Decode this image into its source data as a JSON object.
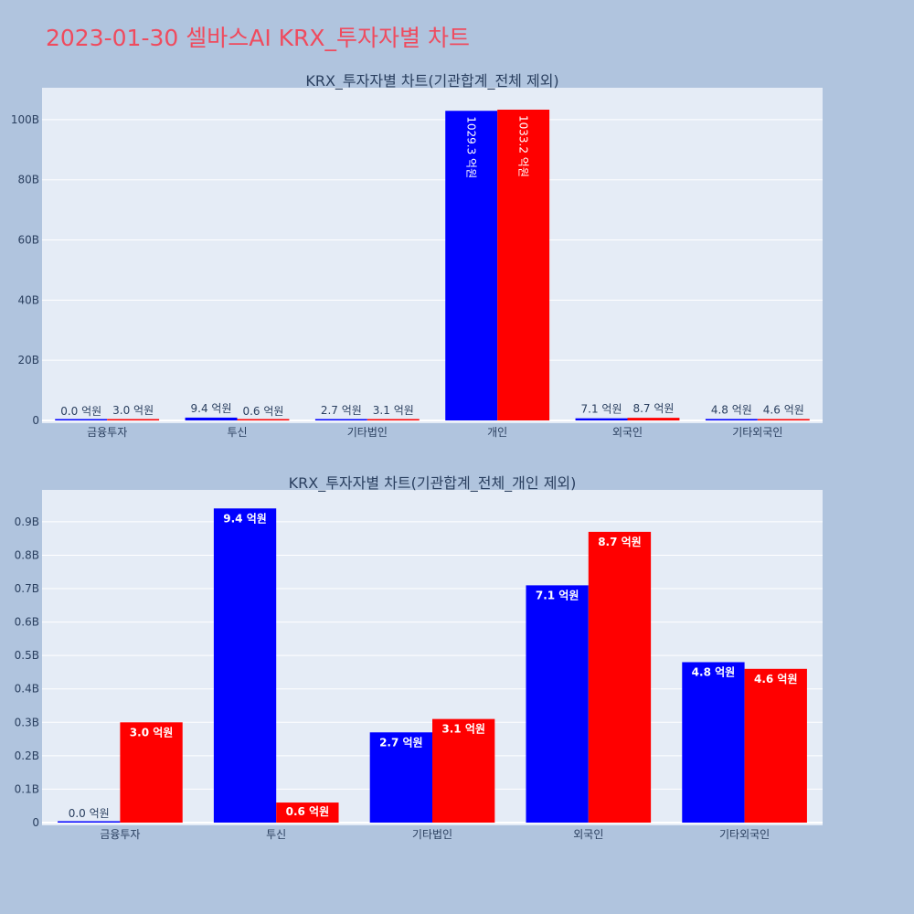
{
  "page": {
    "title": "2023-01-30 셀바스AI KRX_투자자별 차트"
  },
  "colors": {
    "series_a": "#0000ff",
    "series_b": "#ff0000",
    "plot_bg": "#e5ecf6",
    "page_bg": "#b0c4de",
    "title": "#ef4b5e"
  },
  "chart_data": [
    {
      "type": "bar",
      "title": "KRX_투자자별 차트(기관합계_전체 제외)",
      "categories": [
        "금융투자",
        "투신",
        "기타법인",
        "개인",
        "외국인",
        "기타외국인"
      ],
      "series": [
        {
          "values": [
            0.0,
            0.94,
            0.27,
            102.93,
            0.71,
            0.48
          ],
          "labels": [
            "0.0 억원",
            "9.4 억원",
            "2.7 억원",
            "1029.3 억원",
            "7.1 억원",
            "4.8 억원"
          ]
        },
        {
          "values": [
            0.3,
            0.06,
            0.31,
            103.32,
            0.87,
            0.46
          ],
          "labels": [
            "3.0 억원",
            "0.6 억원",
            "3.1 억원",
            "1033.2 억원",
            "8.7 억원",
            "4.6 억원"
          ]
        }
      ],
      "ylim": [
        0,
        110
      ],
      "ytick_values": [
        0,
        20,
        40,
        60,
        80,
        100
      ],
      "ytick_labels": [
        "0",
        "20B",
        "40B",
        "60B",
        "80B",
        "100B"
      ],
      "grid": true,
      "legend": "none"
    },
    {
      "type": "bar",
      "title": "KRX_투자자별 차트(기관합계_전체_개인 제외)",
      "categories": [
        "금융투자",
        "투신",
        "기타법인",
        "외국인",
        "기타외국인"
      ],
      "series": [
        {
          "values": [
            0.0,
            0.94,
            0.27,
            0.71,
            0.48
          ],
          "labels": [
            "0.0 억원",
            "9.4 억원",
            "2.7 억원",
            "7.1 억원",
            "4.8 억원"
          ]
        },
        {
          "values": [
            0.3,
            0.06,
            0.31,
            0.87,
            0.46
          ],
          "labels": [
            "3.0 억원",
            "0.6 억원",
            "3.1 억원",
            "8.7 억원",
            "4.6 억원"
          ]
        }
      ],
      "ylim": [
        0,
        0.99
      ],
      "ytick_values": [
        0,
        0.1,
        0.2,
        0.3,
        0.4,
        0.5,
        0.6,
        0.7,
        0.8,
        0.9
      ],
      "ytick_labels": [
        "0",
        "0.1B",
        "0.2B",
        "0.3B",
        "0.4B",
        "0.5B",
        "0.6B",
        "0.7B",
        "0.8B",
        "0.9B"
      ],
      "grid": true,
      "legend": "none"
    }
  ]
}
